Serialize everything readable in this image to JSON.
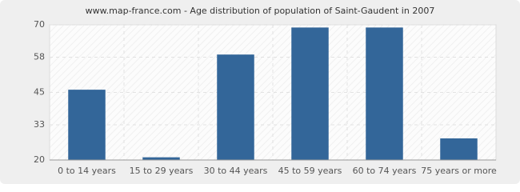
{
  "chart_data": {
    "type": "bar",
    "title": "www.map-france.com - Age distribution of population of Saint-Gaudent in 2007",
    "categories": [
      "0 to 14 years",
      "15 to 29 years",
      "30 to 44 years",
      "45 to 59 years",
      "60 to 74 years",
      "75 years or more"
    ],
    "values": [
      46,
      21,
      59,
      69,
      69,
      28
    ],
    "color": "#336699",
    "ylim": [
      20,
      70
    ],
    "yticks": [
      20,
      33,
      45,
      58,
      70
    ],
    "grid": true
  }
}
